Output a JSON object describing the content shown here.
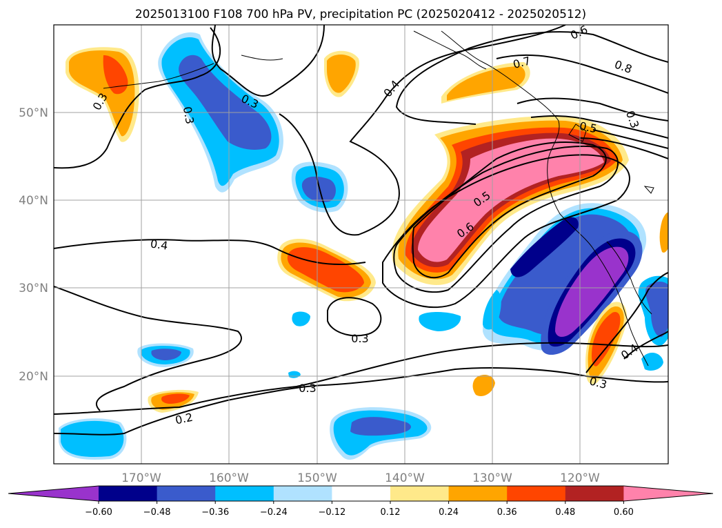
{
  "title": "2025013100 F108 700 hPa PV, precipitation PC (2025020412 - 2025020512)",
  "lon_ticks": [
    "170°W",
    "160°W",
    "150°W",
    "140°W",
    "130°W",
    "120°W"
  ],
  "lat_ticks": [
    "50°N",
    "40°N",
    "30°N",
    "20°N"
  ],
  "colorbar": {
    "tick_labels": [
      "−0.60",
      "−0.48",
      "−0.36",
      "−0.24",
      "−0.12",
      "0.12",
      "0.24",
      "0.36",
      "0.48",
      "0.60"
    ],
    "colors": [
      "#9933cc",
      "#00008b",
      "#3a5bcc",
      "#00bfff",
      "#b0e2ff",
      "#ffffff",
      "#ffe98a",
      "#ffa500",
      "#ff4500",
      "#b22222",
      "#ff82ab"
    ]
  },
  "contour_labels": [
    "0.6",
    "0.7",
    "0.8",
    "0.5",
    "0.4",
    "0.3",
    "0.3",
    "0.5",
    "0.6",
    "0.4",
    "0.3",
    "0.3",
    "0.2",
    "0.3",
    "0.4",
    "0.3",
    "0.3"
  ]
}
